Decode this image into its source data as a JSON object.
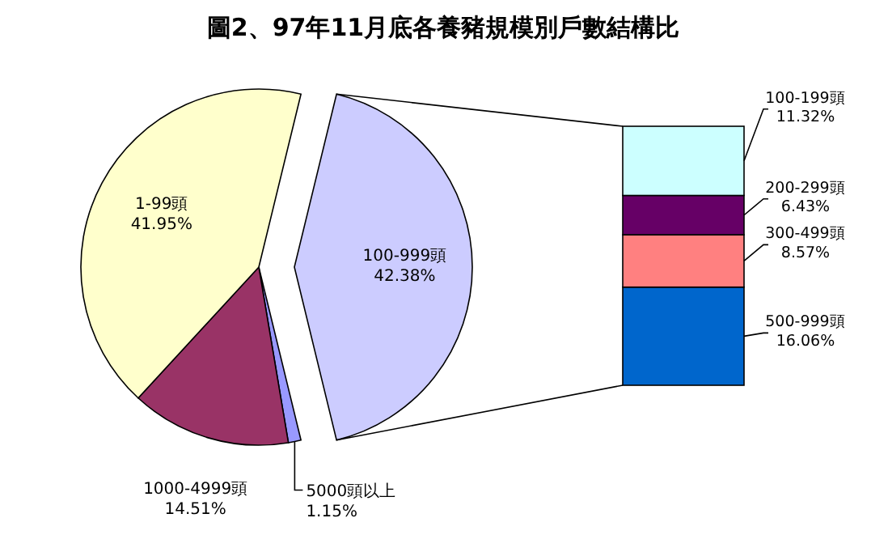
{
  "chart_data": [
    {
      "type": "pie",
      "title": "圖2、97年11月底各養豬規模別戶數結構比",
      "categories": [
        "100-999頭",
        "5000頭以上",
        "1000-4999頭",
        "1-99頭"
      ],
      "values": [
        42.38,
        1.15,
        14.51,
        41.95
      ],
      "value_labels": [
        "42.38%",
        "1.15%",
        "14.51%",
        "41.95%"
      ],
      "colors": [
        "#ccccff",
        "#9999ff",
        "#993366",
        "#ffffcc"
      ]
    },
    {
      "type": "bar",
      "stacked": true,
      "categories": [
        null
      ],
      "series": [
        {
          "name": "500-999頭",
          "color": "#0066cc",
          "values": [
            16.06
          ],
          "value_labels": [
            "16.06%"
          ]
        },
        {
          "name": "300-499頭",
          "color": "#ff8080",
          "values": [
            8.57
          ],
          "value_labels": [
            "8.57%"
          ]
        },
        {
          "name": "200-299頭",
          "color": "#660066",
          "values": [
            6.43
          ],
          "value_labels": [
            "6.43%"
          ]
        },
        {
          "name": "100-199頭",
          "color": "#ccffff",
          "values": [
            11.32
          ],
          "value_labels": [
            "11.32%"
          ]
        }
      ]
    }
  ]
}
